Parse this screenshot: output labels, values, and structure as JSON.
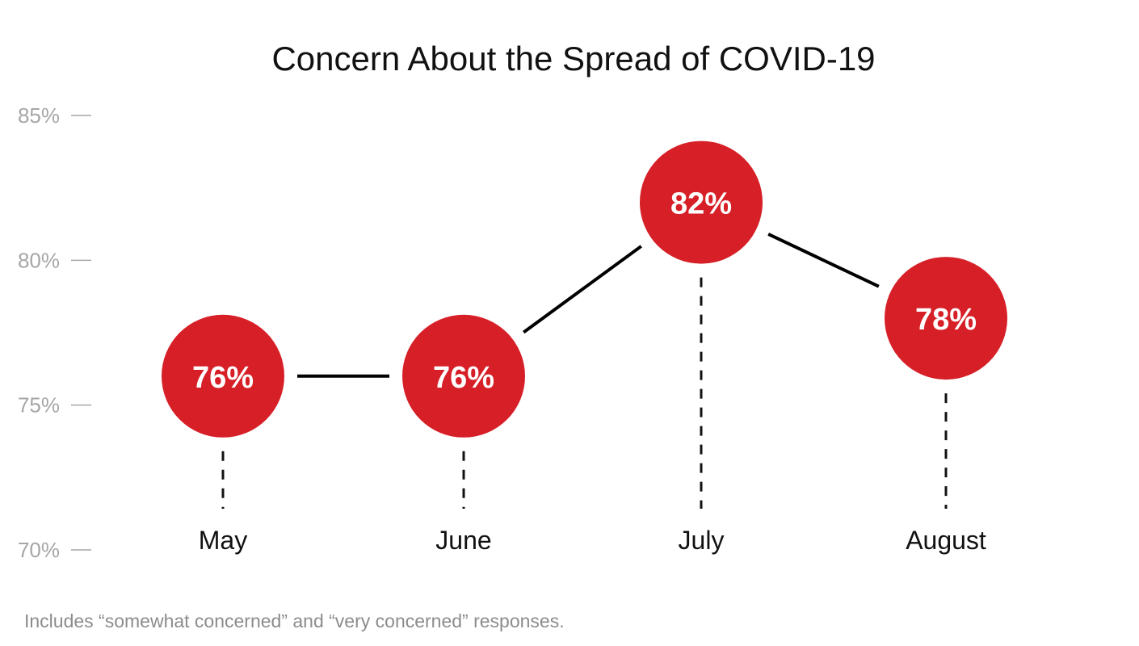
{
  "chart_data": {
    "type": "line",
    "title": "Concern About the Spread of COVID-19",
    "categories": [
      "May",
      "June",
      "July",
      "August"
    ],
    "values": [
      76,
      76,
      82,
      78
    ],
    "value_labels": [
      "76%",
      "76%",
      "82%",
      "78%"
    ],
    "ylim": [
      70,
      85
    ],
    "yticks": [
      70,
      75,
      80,
      85
    ],
    "ytick_labels": [
      "70%",
      "75%",
      "80%",
      "85%"
    ],
    "grid": false,
    "legend": "none",
    "marker_color": "#d71f27",
    "line_color": "#000000",
    "note": "Includes “somewhat concerned” and “very concerned” responses."
  }
}
